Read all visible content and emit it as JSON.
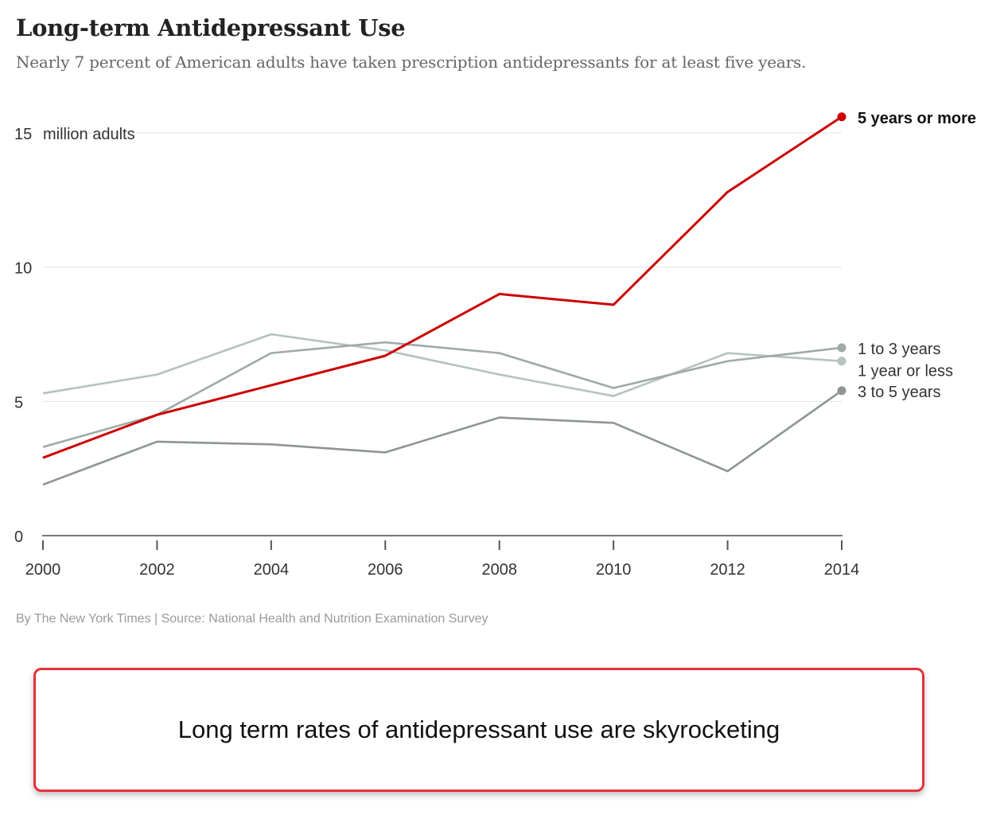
{
  "chart_data": {
    "type": "line",
    "title": "Long-term Antidepressant Use",
    "subtitle": "Nearly 7 percent of American adults have taken prescription antidepressants for at least five years.",
    "x": [
      2000,
      2002,
      2004,
      2006,
      2008,
      2010,
      2012,
      2014
    ],
    "x_tick_labels": [
      "2000",
      "2002",
      "2004",
      "2006",
      "2008",
      "2010",
      "2012",
      "2014"
    ],
    "ylim": [
      0,
      15
    ],
    "y_ticks": [
      0,
      5,
      10,
      15
    ],
    "y_tick_labels": [
      "0",
      "5",
      "10",
      "15"
    ],
    "y_unit_label": "million adults",
    "grid": true,
    "series": [
      {
        "name": "1 year or less",
        "values": [
          5.3,
          6.0,
          7.5,
          6.9,
          6.0,
          5.2,
          6.8,
          6.5
        ],
        "color": "#b4c2c0"
      },
      {
        "name": "1 to 3 years",
        "values": [
          3.3,
          4.5,
          6.8,
          7.2,
          6.8,
          5.5,
          6.5,
          7.0
        ],
        "color": "#9fa9a7"
      },
      {
        "name": "3 to 5 years",
        "values": [
          1.9,
          3.5,
          3.4,
          3.1,
          4.4,
          4.2,
          2.4,
          5.4
        ],
        "color": "#8e9594"
      },
      {
        "name": "5 years or more",
        "values": [
          2.9,
          4.5,
          5.6,
          6.7,
          9.0,
          8.6,
          12.8,
          15.6
        ],
        "color": "#cc0000",
        "highlight": true
      }
    ]
  },
  "credit": "By The New York Times | Source: National Health and Nutrition Examination Survey",
  "callout_text": "Long term rates of antidepressant use are skyrocketing"
}
